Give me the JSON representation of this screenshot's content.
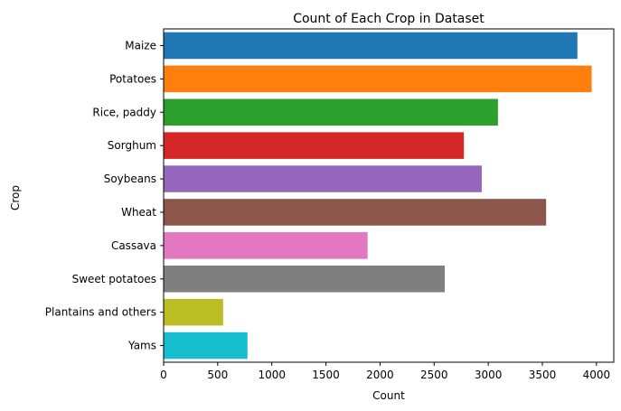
{
  "chart_data": {
    "type": "bar",
    "orientation": "horizontal",
    "title": "Count of Each Crop in Dataset",
    "xlabel": "Count",
    "ylabel": "Crop",
    "xlim": [
      0,
      4160
    ],
    "xticks": [
      0,
      500,
      1000,
      1500,
      2000,
      2500,
      3000,
      3500,
      4000
    ],
    "grid": false,
    "categories": [
      "Maize",
      "Potatoes",
      "Rice, paddy",
      "Sorghum",
      "Soybeans",
      "Wheat",
      "Cassava",
      "Sweet potatoes",
      "Plantains and others",
      "Yams"
    ],
    "values": [
      3824,
      3956,
      3090,
      2775,
      2940,
      3535,
      1885,
      2598,
      550,
      775
    ],
    "colors": [
      "#1f77b4",
      "#ff7f0e",
      "#2ca02c",
      "#d62728",
      "#9467bd",
      "#8c564b",
      "#e377c2",
      "#7f7f7f",
      "#bcbd22",
      "#17becf"
    ]
  }
}
